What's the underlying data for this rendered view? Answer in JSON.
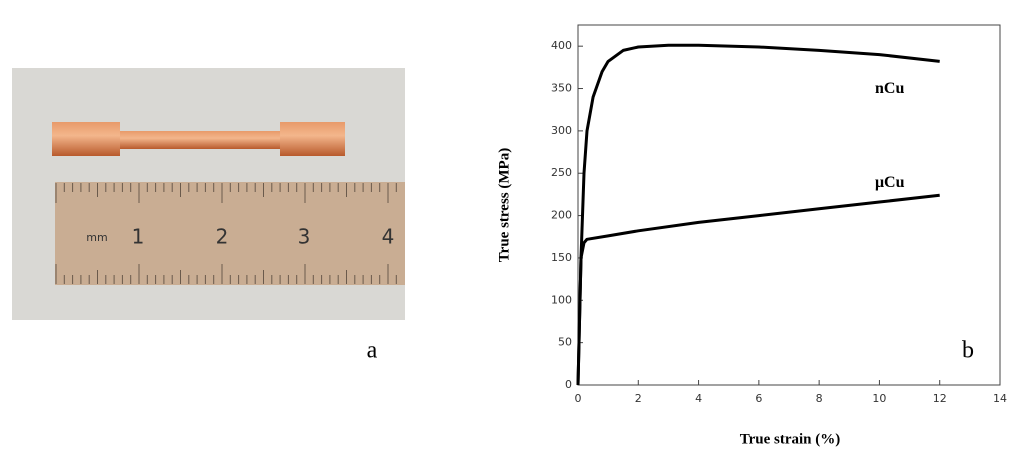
{
  "figure_a": {
    "label": "a",
    "ruler_labels": [
      "mm",
      "1",
      "2",
      "3",
      "4"
    ]
  },
  "chart_data": {
    "type": "line",
    "panel_label": "b",
    "x_label": "True strain (%)",
    "y_label": "True stress (MPa)",
    "xlim": [
      0,
      14
    ],
    "xticks": [
      0,
      2,
      4,
      6,
      8,
      10,
      12,
      14
    ],
    "ylim": [
      0,
      425
    ],
    "yticks": [
      0,
      50,
      100,
      150,
      200,
      250,
      300,
      350,
      400
    ],
    "series": [
      {
        "name": "nCu",
        "color": "#000000",
        "x": [
          0,
          0.1,
          0.2,
          0.3,
          0.5,
          0.8,
          1,
          1.5,
          2,
          3,
          4,
          6,
          8,
          10,
          12
        ],
        "values": [
          0,
          150,
          250,
          300,
          340,
          370,
          382,
          395,
          399,
          401,
          401,
          399,
          395,
          390,
          382
        ]
      },
      {
        "name": "μCu",
        "color": "#000000",
        "x": [
          0,
          0.1,
          0.2,
          0.3,
          1,
          2,
          4,
          6,
          8,
          10,
          12
        ],
        "values": [
          0,
          150,
          168,
          172,
          176,
          182,
          192,
          200,
          208,
          216,
          224
        ]
      }
    ]
  }
}
